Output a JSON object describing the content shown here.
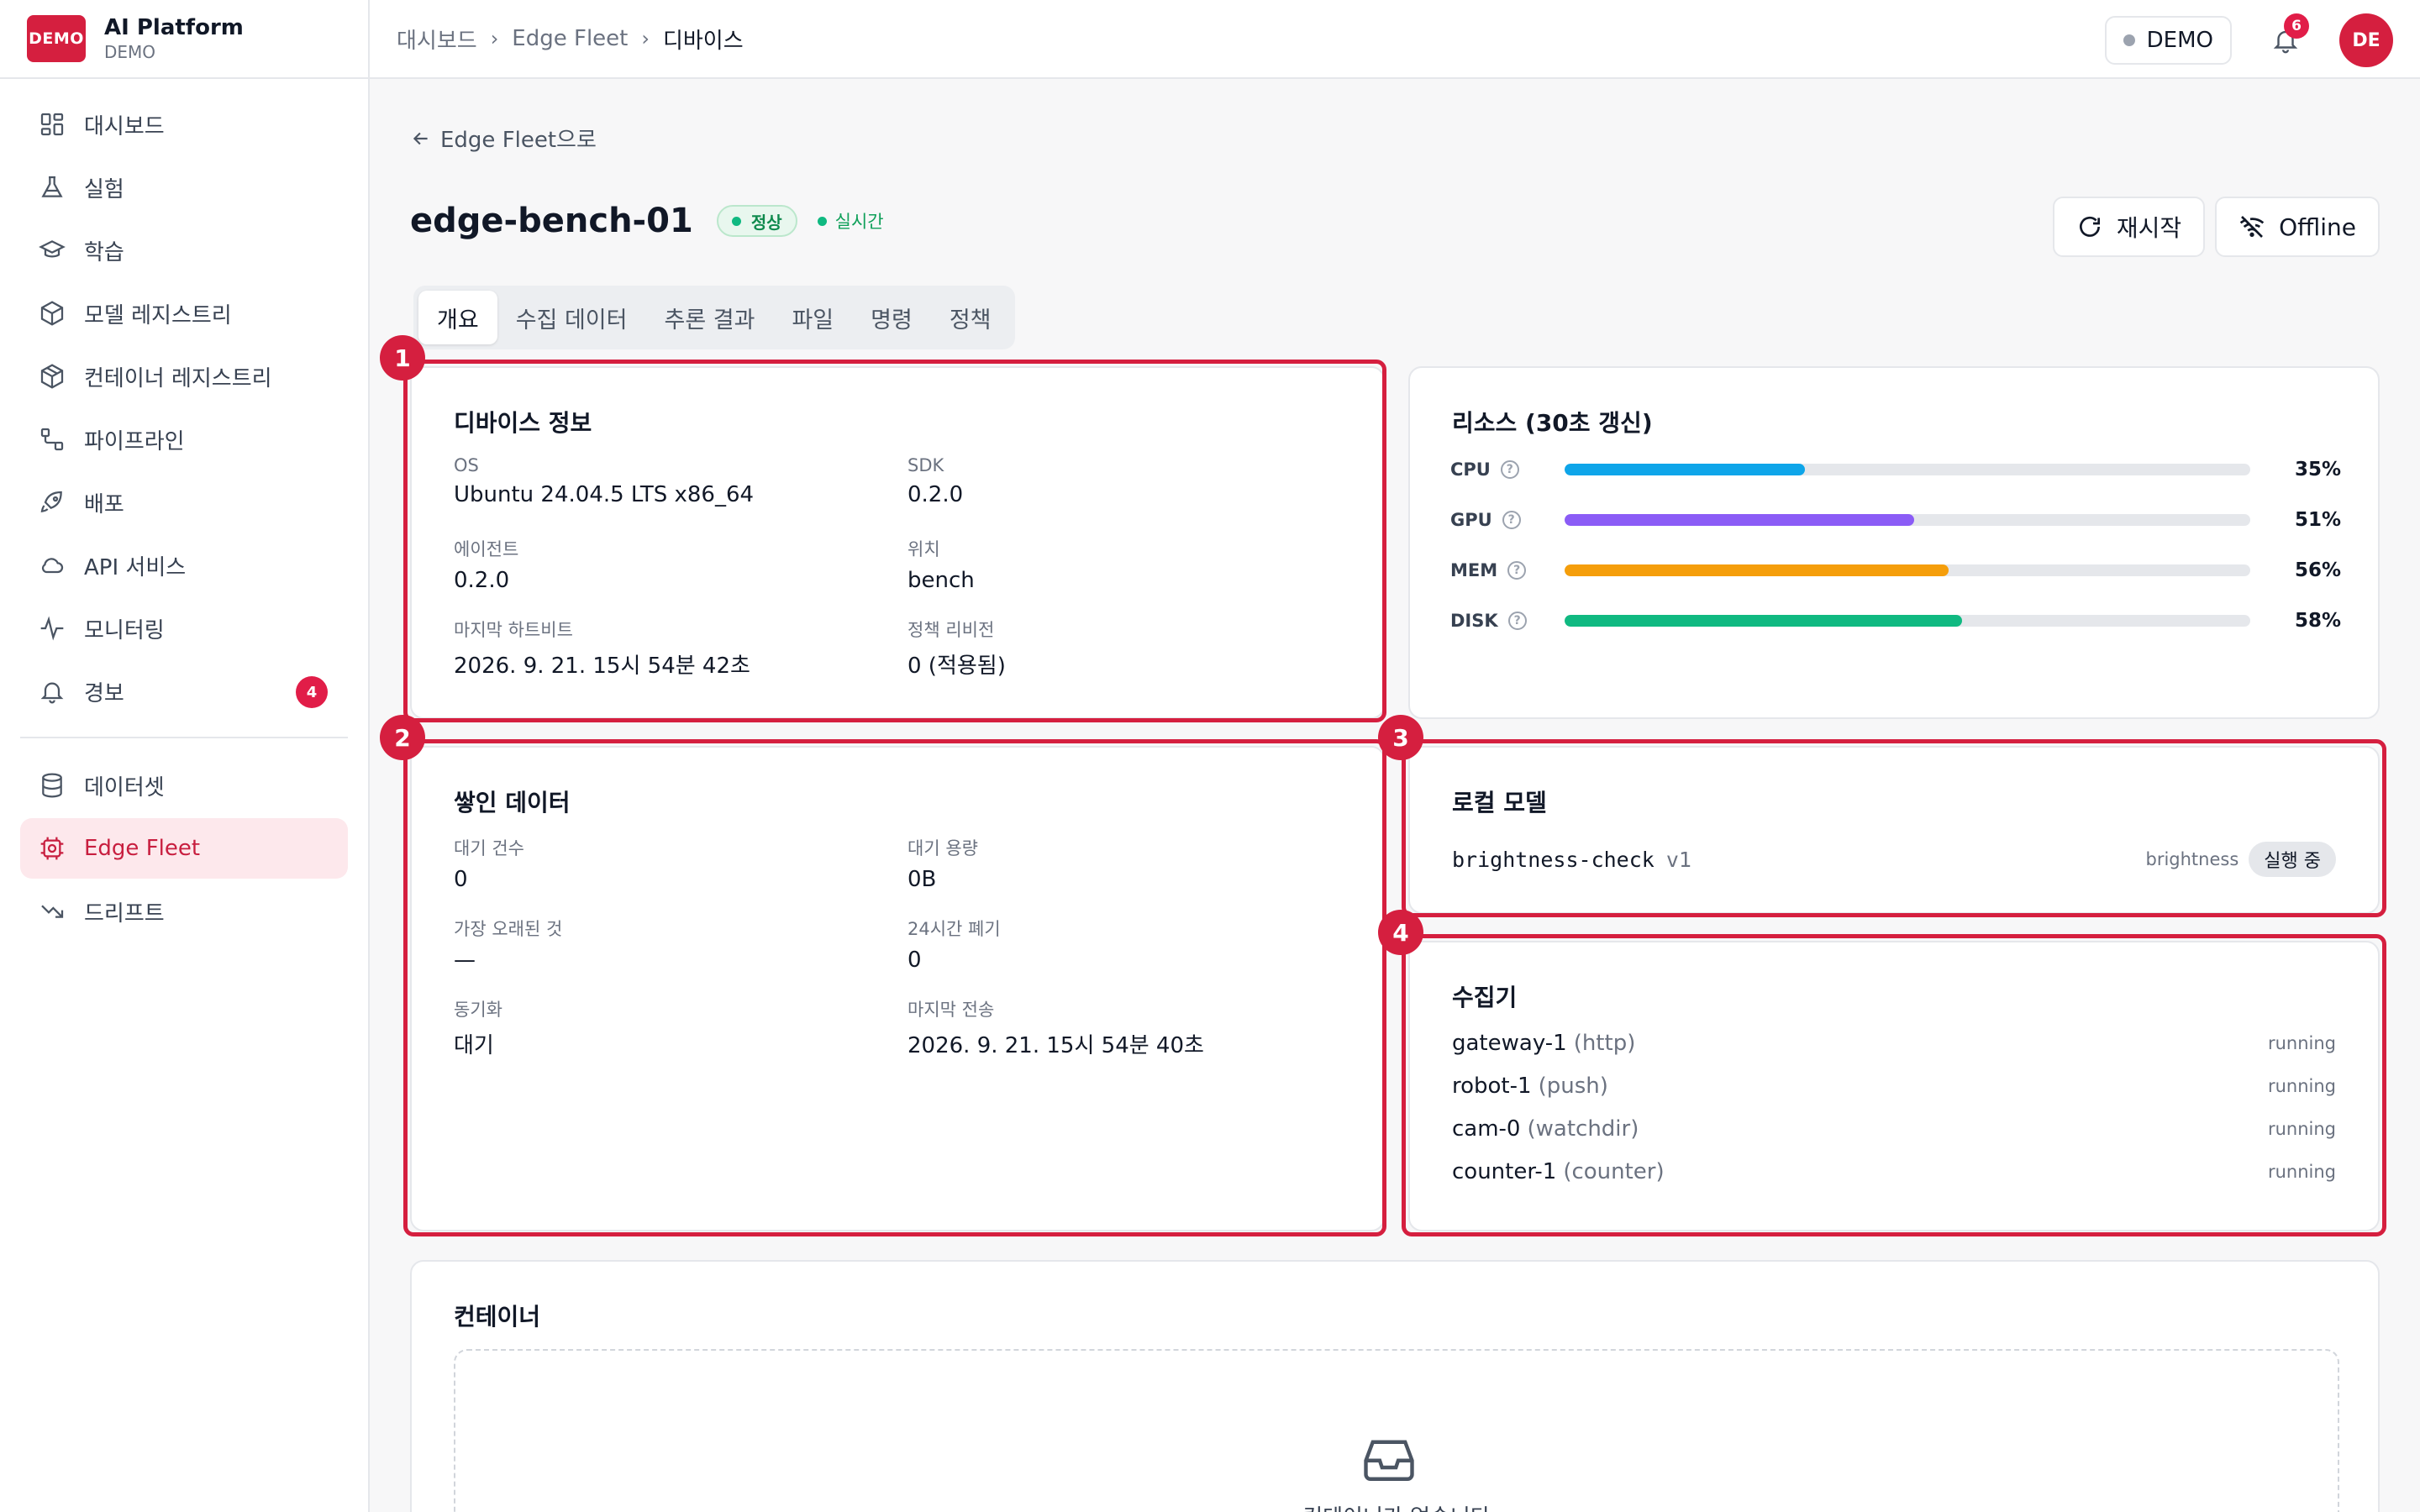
{
  "brand": {
    "logo": "DEMO",
    "name": "AI Platform",
    "sub": "DEMO"
  },
  "sidebar": {
    "items": [
      {
        "label": "대시보드",
        "icon": "dashboard-icon"
      },
      {
        "label": "실험",
        "icon": "flask-icon"
      },
      {
        "label": "학습",
        "icon": "graduation-cap-icon"
      },
      {
        "label": "모델 레지스트리",
        "icon": "cube-icon"
      },
      {
        "label": "컨테이너 레지스트리",
        "icon": "box-icon"
      },
      {
        "label": "파이프라인",
        "icon": "pipeline-icon"
      },
      {
        "label": "배포",
        "icon": "rocket-icon"
      },
      {
        "label": "API 서비스",
        "icon": "cloud-icon"
      },
      {
        "label": "모니터링",
        "icon": "activity-icon"
      },
      {
        "label": "경보",
        "icon": "bell-icon",
        "badge": "4"
      }
    ],
    "items2": [
      {
        "label": "데이터셋",
        "icon": "database-icon"
      },
      {
        "label": "Edge Fleet",
        "icon": "edge-fleet-icon",
        "active": true
      },
      {
        "label": "드리프트",
        "icon": "trend-down-icon"
      }
    ]
  },
  "header": {
    "breadcrumbs": [
      "대시보드",
      "Edge Fleet",
      "디바이스"
    ],
    "demo_label": "DEMO",
    "notif_count": "6",
    "avatar": "DE"
  },
  "page": {
    "back_label": "Edge Fleet으로",
    "title": "edge-bench-01",
    "status": "정상",
    "live": "실시간",
    "restart_label": "재시작",
    "offline_label": "Offline",
    "tabs": [
      "개요",
      "수집 데이터",
      "추론 결과",
      "파일",
      "명령",
      "정책"
    ],
    "active_tab": 0
  },
  "device_info": {
    "title": "디바이스 정보",
    "fields": [
      {
        "label": "OS",
        "value": "Ubuntu 24.04.5 LTS x86_64"
      },
      {
        "label": "SDK",
        "value": "0.2.0"
      },
      {
        "label": "에이전트",
        "value": "0.2.0"
      },
      {
        "label": "위치",
        "value": "bench"
      },
      {
        "label": "마지막 하트비트",
        "value": "2026. 9. 21. 15시 54분 42초"
      },
      {
        "label": "정책 리비전",
        "value": "0 (적용됨)"
      }
    ]
  },
  "resources": {
    "title": "리소스 (30초 갱신)",
    "items": [
      {
        "label": "CPU",
        "value": 35,
        "text": "35%",
        "color": "#0ea5e9"
      },
      {
        "label": "GPU",
        "value": 51,
        "text": "51%",
        "color": "#8b5cf6"
      },
      {
        "label": "MEM",
        "value": 56,
        "text": "56%",
        "color": "#f59e0b"
      },
      {
        "label": "DISK",
        "value": 58,
        "text": "58%",
        "color": "#10b981"
      }
    ]
  },
  "queued": {
    "title": "쌓인 데이터",
    "fields": [
      {
        "label": "대기 건수",
        "value": "0"
      },
      {
        "label": "대기 용량",
        "value": "0B"
      },
      {
        "label": "가장 오래된 것",
        "value": "—"
      },
      {
        "label": "24시간 폐기",
        "value": "0"
      },
      {
        "label": "동기화",
        "value": "대기"
      },
      {
        "label": "마지막 전송",
        "value": "2026. 9. 21. 15시 54분 40초"
      }
    ]
  },
  "local_model": {
    "title": "로컬 모델",
    "name": "brightness-check",
    "version": "v1",
    "tag": "brightness",
    "state": "실행 중"
  },
  "collectors": {
    "title": "수집기",
    "items": [
      {
        "name": "gateway-1",
        "kind": "(http)",
        "state": "running"
      },
      {
        "name": "robot-1",
        "kind": "(push)",
        "state": "running"
      },
      {
        "name": "cam-0",
        "kind": "(watchdir)",
        "state": "running"
      },
      {
        "name": "counter-1",
        "kind": "(counter)",
        "state": "running"
      }
    ]
  },
  "containers": {
    "title": "컨테이너",
    "empty_text": "컨테이너가 없습니다"
  },
  "highlights": [
    "1",
    "2",
    "3",
    "4"
  ],
  "colors": {
    "accent": "#d51f3f",
    "active_bg": "#fde8ec",
    "success": "#10b981"
  }
}
